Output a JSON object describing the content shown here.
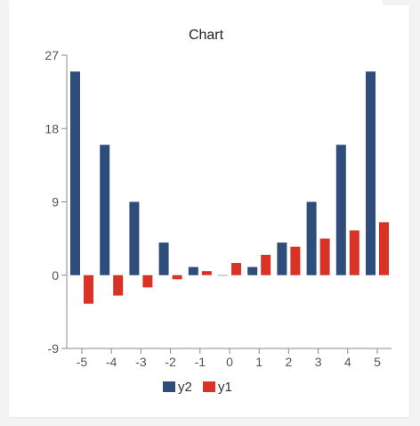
{
  "chart_data": {
    "type": "bar",
    "title": "Chart",
    "xlabel": "",
    "ylabel": "",
    "categories": [
      "-5",
      "-4",
      "-3",
      "-2",
      "-1",
      "0",
      "1",
      "2",
      "3",
      "4",
      "5"
    ],
    "ylim": [
      -9,
      27
    ],
    "yticks": [
      "27",
      "18",
      "9",
      "0",
      "-9"
    ],
    "grid": false,
    "legend_position": "bottom",
    "series": [
      {
        "name": "y2",
        "color": "#2e4d7b",
        "values": [
          25,
          16,
          9,
          4,
          1,
          0,
          1,
          4,
          9,
          16,
          25
        ]
      },
      {
        "name": "y1",
        "color": "#d93226",
        "values": [
          -3.5,
          -2.5,
          -1.5,
          -0.5,
          0.5,
          1.5,
          2.5,
          3.5,
          4.5,
          5.5,
          6.5
        ]
      }
    ]
  }
}
